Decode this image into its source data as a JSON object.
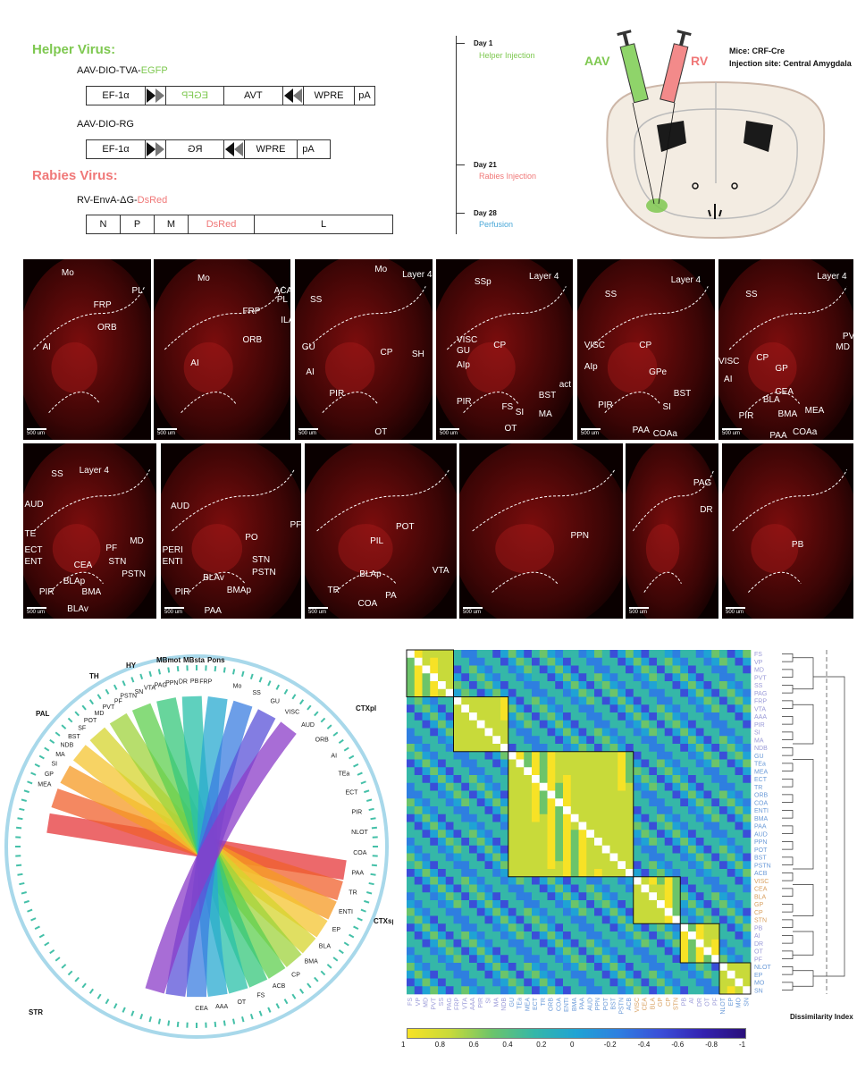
{
  "schematic": {
    "helper_title": "Helper Virus:",
    "construct1_name": "AAV-DIO-TVA-",
    "construct1_name_colored": "EGFP",
    "construct1_segments": [
      "EF-1α",
      "EGFP",
      "TVA",
      "WPRE",
      "pA"
    ],
    "construct2_name": "AAV-DIO-RG",
    "construct2_segments": [
      "EF-1α",
      "RG",
      "WPRE",
      "pA"
    ],
    "rabies_title": "Rabies Virus:",
    "construct3_name": "RV-EnvA-ΔG-",
    "construct3_name_colored": "DsRed",
    "construct3_segments": [
      "N",
      "P",
      "M",
      "DsRed",
      "L"
    ]
  },
  "timeline": {
    "events": [
      {
        "day": "Day 1",
        "event": "Helper Injection",
        "color": "#7ec850"
      },
      {
        "day": "Day 21",
        "event": "Rabies Injection",
        "color": "#f07878"
      },
      {
        "day": "Day 28",
        "event": "Perfusion",
        "color": "#4aa8d8"
      }
    ]
  },
  "brain_diagram": {
    "aav_label": "AAV",
    "rv_label": "RV",
    "mice_label": "Mice: CRF-Cre",
    "injection_label": "Injection site: Central Amygdala"
  },
  "sections": {
    "scale_label": "500 um",
    "row1": [
      {
        "regions": [
          "Mo",
          "PL",
          "FRP",
          "ORB",
          "AI"
        ]
      },
      {
        "regions": [
          "Mo",
          "ACA",
          "PL",
          "FRP",
          "ILA",
          "ORB",
          "AI"
        ]
      },
      {
        "regions": [
          "Mo",
          "Layer 4",
          "SS",
          "CP",
          "GU",
          "SH",
          "AI",
          "PIR",
          "OT"
        ]
      },
      {
        "regions": [
          "SSp",
          "Layer 4",
          "CP",
          "VISC",
          "GU",
          "AIp",
          "act",
          "BST",
          "PIR",
          "FS",
          "SI",
          "MA",
          "OT"
        ]
      },
      {
        "regions": [
          "SS",
          "Layer 4",
          "CP",
          "VISC",
          "AIp",
          "GPe",
          "BST",
          "PIR",
          "SI",
          "PAA",
          "COAa"
        ]
      },
      {
        "regions": [
          "SS",
          "Layer 4",
          "MD",
          "PVT",
          "VISC",
          "CP",
          "AI",
          "GP",
          "CEA",
          "BLA",
          "PIR",
          "BMA",
          "MEA",
          "PAA",
          "COAa"
        ]
      }
    ],
    "row2": [
      {
        "regions": [
          "SS",
          "Layer 4",
          "AUD",
          "TE",
          "ECT",
          "ENT",
          "MD",
          "PF",
          "STN",
          "CEA",
          "PSTN",
          "BLAp",
          "PIR",
          "BMA",
          "BLAv"
        ]
      },
      {
        "regions": [
          "AUD",
          "PF",
          "PO",
          "PERI",
          "ENTI",
          "STN",
          "PSTN",
          "BLAv",
          "PIR",
          "BMAp",
          "PAA"
        ]
      },
      {
        "regions": [
          "POT",
          "PIL",
          "VTA",
          "BLAp",
          "TR",
          "PA",
          "COA"
        ]
      },
      {
        "regions": [
          "PPN"
        ]
      },
      {
        "regions": [
          "PAG",
          "DR"
        ]
      },
      {
        "regions": [
          "PB"
        ]
      }
    ]
  },
  "chord": {
    "groups": [
      "PAL",
      "TH",
      "HY",
      "MBmot",
      "MBsta",
      "Pons",
      "CTXpl",
      "CTXsp",
      "STR"
    ],
    "top_nodes": [
      "Mo",
      "SS",
      "GU",
      "VISC",
      "AUD",
      "ORB",
      "AI",
      "TEa",
      "ECT",
      "PIR",
      "NLOT",
      "COA",
      "PAA",
      "TR",
      "ENTI",
      "EP",
      "BLA",
      "BMA",
      "CP",
      "ACB",
      "FS",
      "OT",
      "AAA",
      "CEA"
    ],
    "left_nodes": [
      "MEA",
      "GP",
      "SI",
      "MA",
      "NDB",
      "BST",
      "SF",
      "POT",
      "MD",
      "PVT",
      "PF",
      "PSTN",
      "SN",
      "VTA",
      "PAG",
      "PPN",
      "DR",
      "PB",
      "FRP"
    ]
  },
  "heatmap": {
    "row_labels": [
      "FS",
      "VP",
      "MD",
      "PVT",
      "SS",
      "PAG",
      "FRP",
      "VTA",
      "AAA",
      "PIR",
      "SI",
      "MA",
      "NDB",
      "GU",
      "TEa",
      "MEA",
      "ECT",
      "TR",
      "ORB",
      "COA",
      "ENTI",
      "BMA",
      "PAA",
      "AUD",
      "PPN",
      "POT",
      "BST",
      "PSTN",
      "ACB",
      "VISC",
      "CEA",
      "BLA",
      "GP",
      "CP",
      "STN",
      "PB",
      "AI",
      "DR",
      "OT",
      "PF",
      "NLOT",
      "EP",
      "MO",
      "SN"
    ],
    "colorbar_ticks": [
      "1",
      "0.8",
      "0.6",
      "0.4",
      "0.2",
      "0",
      "-0.2",
      "-0.4",
      "-0.6",
      "-0.8",
      "-1"
    ],
    "dendrogram_title": "Dissimilarity Index"
  }
}
